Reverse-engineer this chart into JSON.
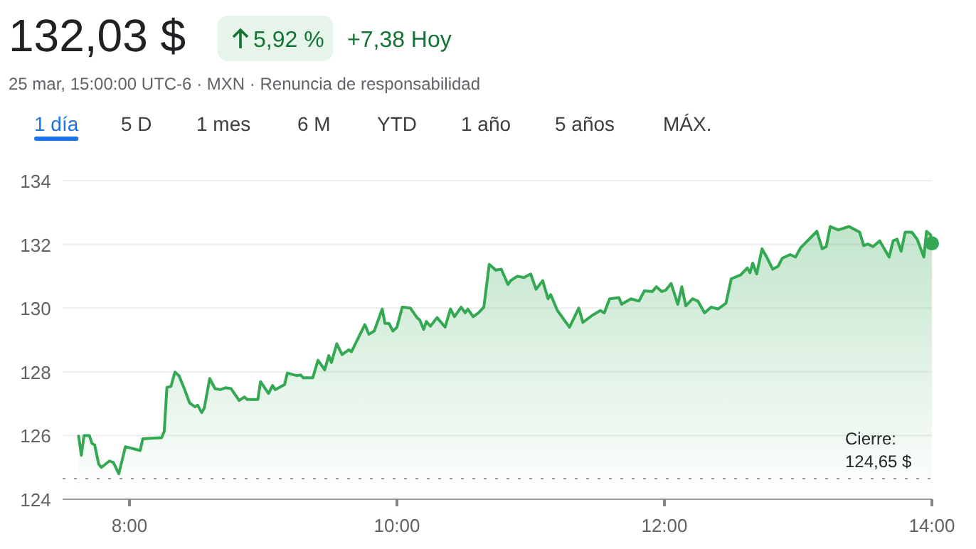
{
  "chart_data": {
    "type": "area",
    "title": "132,03 $",
    "subtitle": "25 mar, 15:00:00 UTC-6 · MXN · Renuncia de responsabilidad",
    "annotations": [
      "5,92 %",
      "+7,38 Hoy",
      "1 día",
      "5 D",
      "1 mes",
      "6 M",
      "YTD",
      "1 año",
      "5 años",
      "MÁX."
    ],
    "xlim": [
      7.5,
      14
    ],
    "xticks": [
      {
        "value": 8,
        "label": "8:00"
      },
      {
        "value": 10,
        "label": "10:00"
      },
      {
        "value": 12,
        "label": "12:00"
      },
      {
        "value": 14,
        "label": "14:00"
      }
    ],
    "ylim": [
      124,
      134
    ],
    "yticks": [
      124,
      126,
      128,
      130,
      132,
      134
    ],
    "grid": "y",
    "marker": "none",
    "line_style": "solid",
    "ref_lines": [
      {
        "axis": "y",
        "value": 124.65,
        "label": "Cierre:\n124,65 $",
        "line_style": "dotted",
        "color": "#9aa0a6"
      }
    ],
    "series": [
      {
        "color": "#34a853",
        "x": [
          7.62,
          7.64,
          7.66,
          7.7,
          7.72,
          7.74,
          7.77,
          7.79,
          7.85,
          7.88,
          7.92,
          7.97,
          8.08,
          8.1,
          8.24,
          8.26,
          8.28,
          8.31,
          8.34,
          8.37,
          8.41,
          8.45,
          8.49,
          8.51,
          8.54,
          8.56,
          8.6,
          8.64,
          8.68,
          8.72,
          8.76,
          8.82,
          8.86,
          8.88,
          8.96,
          8.98,
          9.04,
          9.07,
          9.09,
          9.16,
          9.18,
          9.25,
          9.28,
          9.3,
          9.37,
          9.41,
          9.46,
          9.49,
          9.51,
          9.55,
          9.59,
          9.64,
          9.66,
          9.76,
          9.79,
          9.83,
          9.89,
          9.91,
          9.94,
          9.97,
          10.0,
          10.04,
          10.1,
          10.15,
          10.17,
          10.2,
          10.22,
          10.25,
          10.3,
          10.36,
          10.4,
          10.43,
          10.48,
          10.51,
          10.53,
          10.57,
          10.61,
          10.65,
          10.69,
          10.74,
          10.78,
          10.83,
          10.85,
          10.9,
          10.95,
          11.0,
          11.04,
          11.09,
          11.13,
          11.15,
          11.2,
          11.29,
          11.36,
          11.39,
          11.46,
          11.52,
          11.55,
          11.59,
          11.66,
          11.68,
          11.75,
          11.81,
          11.85,
          11.91,
          11.94,
          11.98,
          12.01,
          12.05,
          12.1,
          12.13,
          12.16,
          12.21,
          12.25,
          12.3,
          12.35,
          12.4,
          12.46,
          12.5,
          12.57,
          12.62,
          12.64,
          12.66,
          12.69,
          12.73,
          12.77,
          12.81,
          12.85,
          12.88,
          12.94,
          12.98,
          13.02,
          13.14,
          13.18,
          13.21,
          13.24,
          13.3,
          13.38,
          13.46,
          13.49,
          13.52,
          13.56,
          13.61,
          13.68,
          13.71,
          13.74,
          13.77,
          13.8,
          13.85,
          13.89,
          13.94,
          13.96,
          13.99,
          14.0
        ],
        "values": [
          125.98,
          125.38,
          126.0,
          126.0,
          125.75,
          125.7,
          125.1,
          125.0,
          125.2,
          125.15,
          124.8,
          125.65,
          125.53,
          125.9,
          125.93,
          126.13,
          127.51,
          127.54,
          127.99,
          127.88,
          127.47,
          127.02,
          126.9,
          126.95,
          126.72,
          126.87,
          127.79,
          127.47,
          127.44,
          127.5,
          127.47,
          127.1,
          127.21,
          127.13,
          127.13,
          127.69,
          127.32,
          127.57,
          127.44,
          127.6,
          127.96,
          127.88,
          127.9,
          127.81,
          127.81,
          128.36,
          128.06,
          128.51,
          128.29,
          128.88,
          128.54,
          128.69,
          128.63,
          129.48,
          129.18,
          129.28,
          129.97,
          129.52,
          129.52,
          129.28,
          129.4,
          130.03,
          130.0,
          129.7,
          129.63,
          129.33,
          129.58,
          129.43,
          129.7,
          129.4,
          129.97,
          129.73,
          130.03,
          129.85,
          129.97,
          129.73,
          129.85,
          130.03,
          131.37,
          131.19,
          131.22,
          130.74,
          130.86,
          131.0,
          130.96,
          131.07,
          130.59,
          130.86,
          130.29,
          130.42,
          129.92,
          129.4,
          130.0,
          129.55,
          129.77,
          129.92,
          129.85,
          130.29,
          130.33,
          130.12,
          130.29,
          130.22,
          130.54,
          130.52,
          130.67,
          130.52,
          130.56,
          130.77,
          130.12,
          130.67,
          130.07,
          130.29,
          130.22,
          129.85,
          130.03,
          129.97,
          130.15,
          130.92,
          131.04,
          131.26,
          131.11,
          131.41,
          131.07,
          131.86,
          131.56,
          131.22,
          131.31,
          131.56,
          131.68,
          131.6,
          131.9,
          132.41,
          131.86,
          131.93,
          132.56,
          132.45,
          132.56,
          132.38,
          131.96,
          132.01,
          131.93,
          132.11,
          131.6,
          132.11,
          132.16,
          131.78,
          132.38,
          132.38,
          132.16,
          131.6,
          132.41,
          132.3,
          132.03
        ]
      }
    ]
  }
}
